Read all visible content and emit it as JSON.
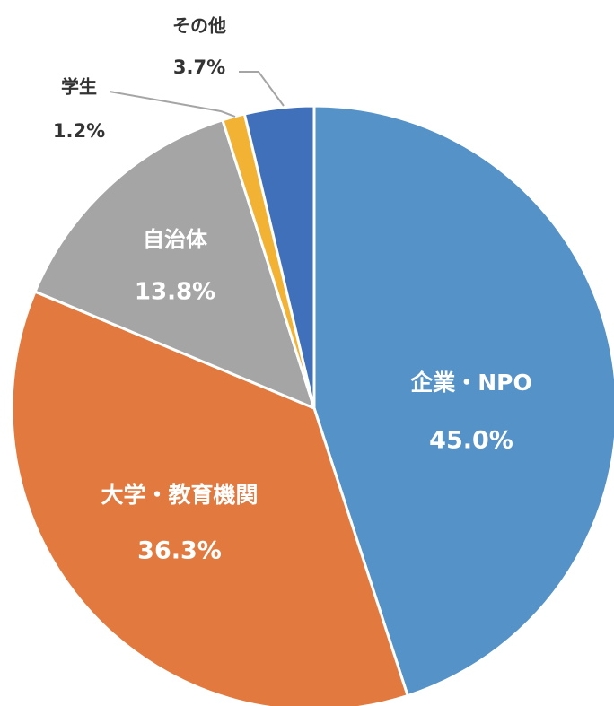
{
  "chart_data": {
    "type": "pie",
    "categories": [
      "企業・NPO",
      "大学・教育機関",
      "自治体",
      "学生",
      "その他"
    ],
    "values": [
      45.0,
      36.3,
      13.8,
      1.2,
      3.7
    ],
    "value_labels": [
      "45.0%",
      "36.3%",
      "13.8%",
      "1.2%",
      "3.7%"
    ],
    "colors": [
      "#5592c8",
      "#e27a3f",
      "#a5a5a5",
      "#f2b233",
      "#4170bb"
    ]
  }
}
